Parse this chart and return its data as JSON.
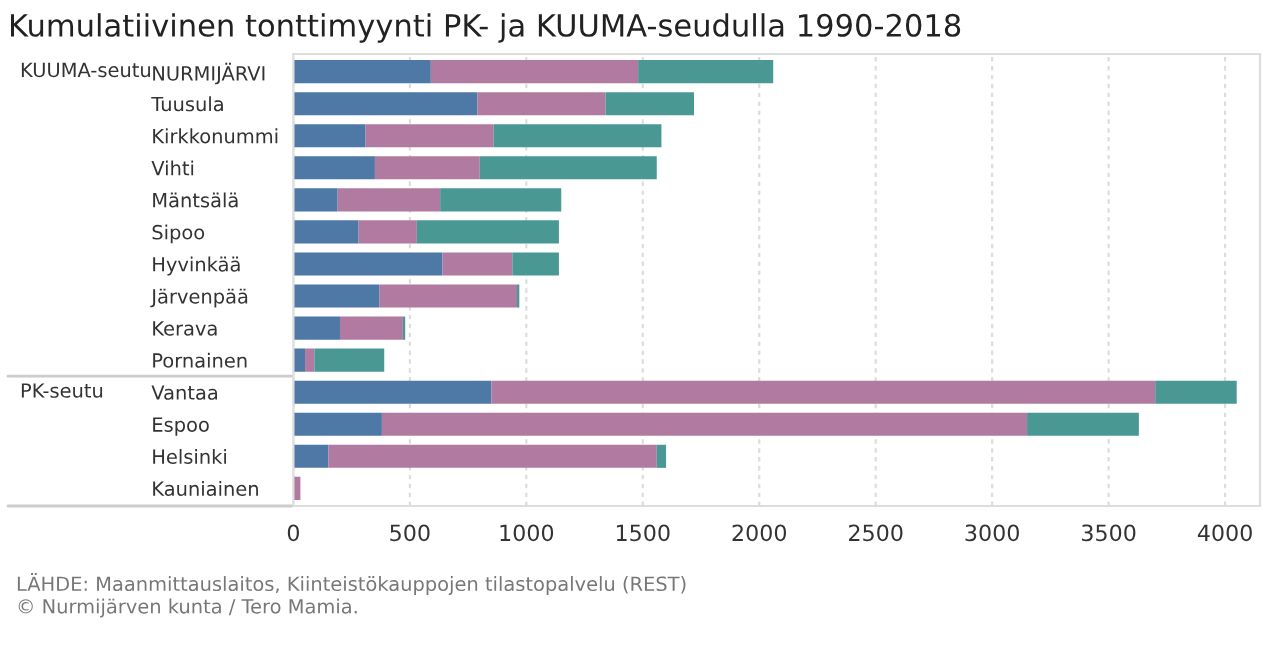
{
  "chart_data": {
    "type": "bar",
    "orientation": "horizontal",
    "stacked": true,
    "title": "Kumulatiivinen tonttimyynti PK- ja KUUMA-seudulla 1990-2018",
    "categories": [
      "NURMIJÄRVI",
      "Tuusula",
      "Kirkkonummi",
      "Vihti",
      "Mäntsälä",
      "Sipoo",
      "Hyvinkää",
      "Järvenpää",
      "Kerava",
      "Pornainen",
      "Vantaa",
      "Espoo",
      "Helsinki",
      "Kauniainen"
    ],
    "series": [
      {
        "color": "#4e79a7",
        "values": [
          590,
          790,
          310,
          350,
          190,
          280,
          640,
          370,
          200,
          50,
          850,
          380,
          150,
          0
        ]
      },
      {
        "color": "#b07aa1",
        "values": [
          890,
          550,
          550,
          450,
          440,
          250,
          300,
          590,
          270,
          40,
          2850,
          2770,
          1410,
          30
        ]
      },
      {
        "color": "#499894",
        "values": [
          580,
          380,
          720,
          760,
          520,
          610,
          200,
          10,
          10,
          300,
          350,
          480,
          40,
          0
        ]
      }
    ],
    "xlim": [
      0,
      4150
    ],
    "xticks": [
      0,
      500,
      1000,
      1500,
      2000,
      2500,
      3000,
      3500,
      4000
    ],
    "grid": "x",
    "legend": false,
    "annotations": [
      "KUUMA-seutu",
      "PK-seutu",
      "LÄHDE: Maanmittauslaitos, Kiinteistökauppojen tilastopalvelu (REST)",
      "© Nurmijärven kunta / Tero Mamia."
    ]
  }
}
